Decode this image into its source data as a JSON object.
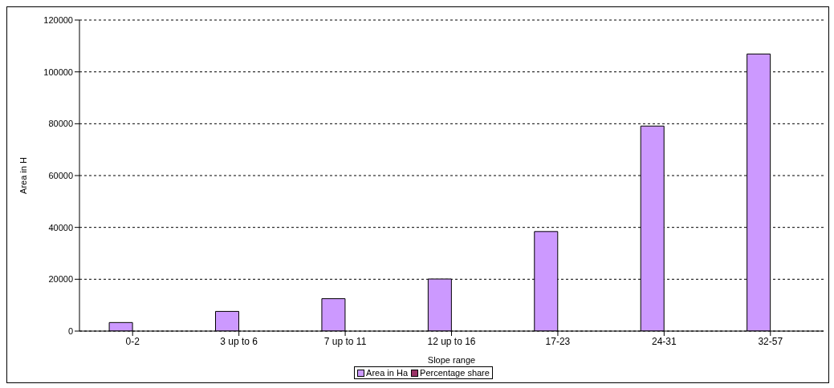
{
  "chart_data": {
    "type": "bar",
    "xlabel": "Slope range",
    "ylabel": "Area in H",
    "categories": [
      "0-2",
      "3 up to 6",
      "7 up to 11",
      "12 up to 16",
      "17-23",
      "24-31",
      "32-57"
    ],
    "series": [
      {
        "name": "Area in Ha",
        "color": "#cc99ff",
        "values": [
          3300,
          7600,
          12500,
          20100,
          38400,
          79100,
          106900
        ]
      },
      {
        "name": "Percentage share",
        "color": "#993366",
        "values": [
          null,
          null,
          null,
          null,
          null,
          null,
          null
        ]
      }
    ],
    "ylim": [
      0,
      120000
    ],
    "yticks": [
      0,
      20000,
      40000,
      60000,
      80000,
      100000,
      120000
    ],
    "grid": "y",
    "legend": "bottom"
  }
}
